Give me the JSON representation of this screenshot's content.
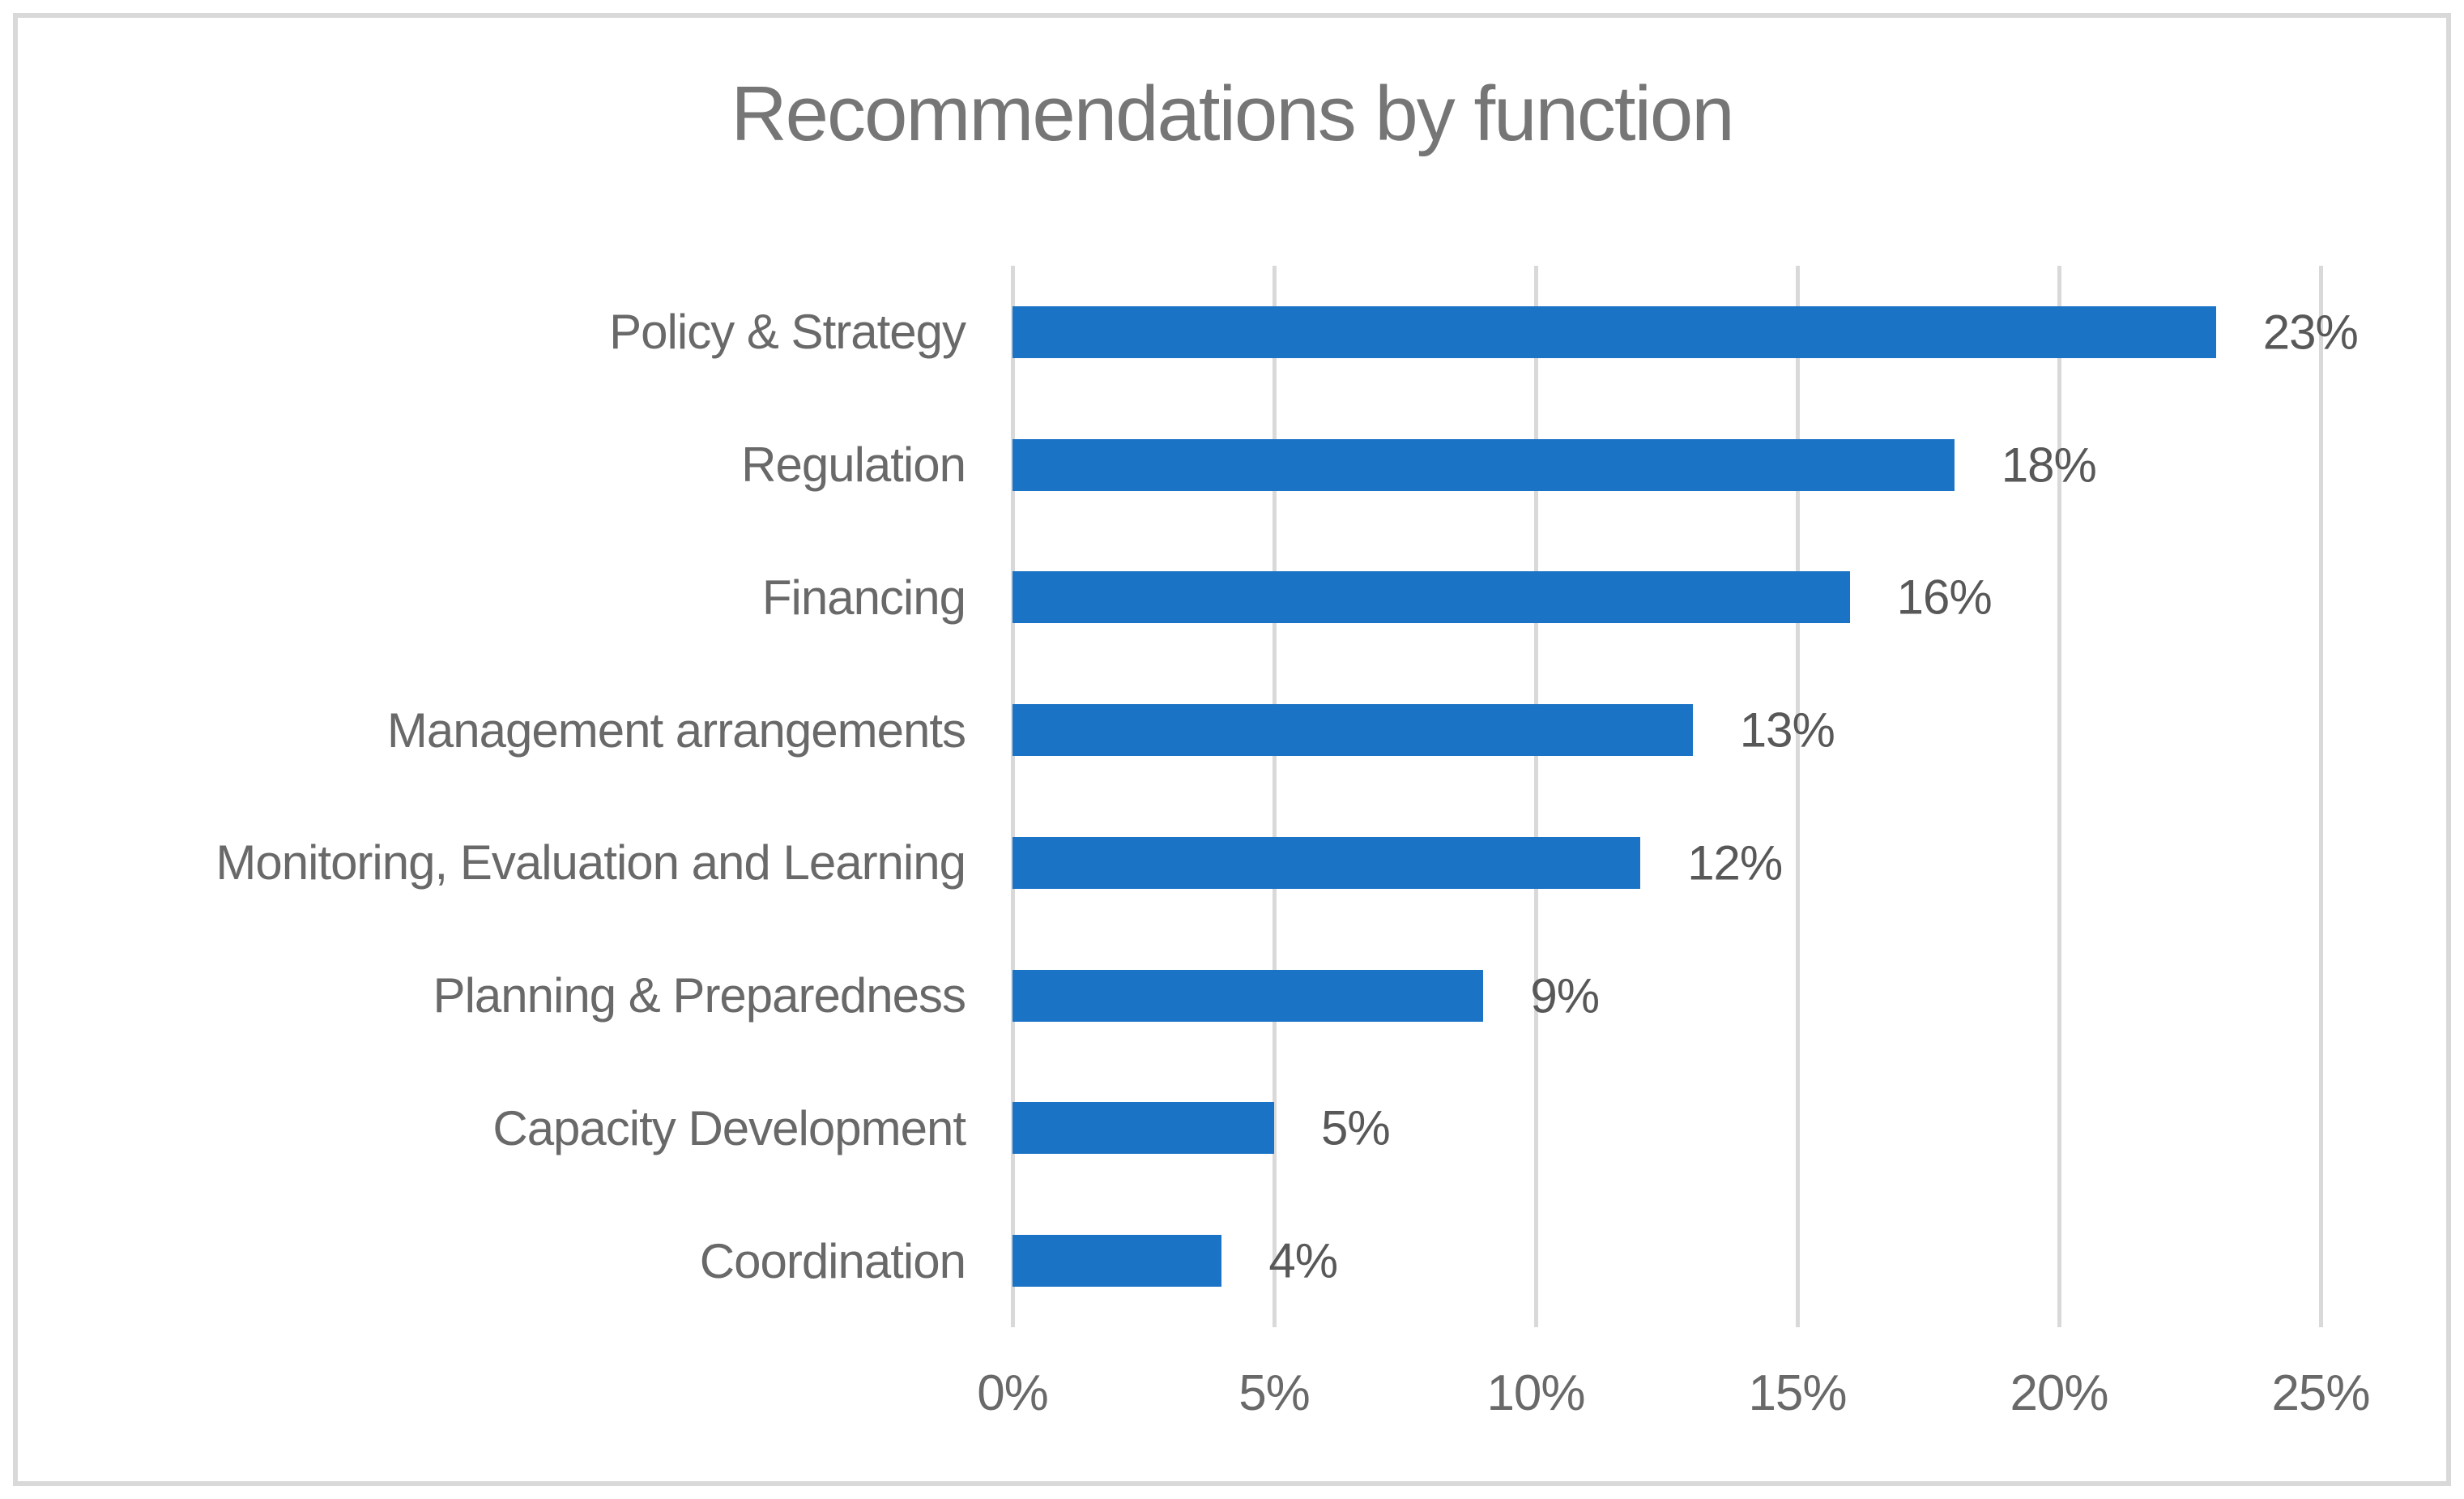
{
  "chart_data": {
    "type": "bar",
    "orientation": "horizontal",
    "title": "Recommendations by function",
    "categories": [
      "Policy & Strategy",
      "Regulation",
      "Financing",
      "Management arrangements",
      "Monitoring, Evaluation and Learning",
      "Planning & Preparedness",
      "Capacity Development",
      "Coordination"
    ],
    "values": [
      23,
      18,
      16,
      13,
      12,
      9,
      5,
      4
    ],
    "value_labels": [
      "23%",
      "18%",
      "16%",
      "13%",
      "12%",
      "9%",
      "5%",
      "4%"
    ],
    "x_ticks": [
      "0%",
      "5%",
      "10%",
      "15%",
      "20%",
      "25%"
    ],
    "xlim": [
      0,
      25
    ],
    "xlabel": "",
    "ylabel": "",
    "grid": true,
    "legend": false,
    "colors": {
      "bar": "#1B73C6",
      "gridline": "#D9D9D9",
      "frame_border": "#D9D9D9",
      "title_text": "#767676",
      "axis_text": "#696969",
      "data_label_text": "#585858",
      "background": "#FFFFFF"
    }
  }
}
